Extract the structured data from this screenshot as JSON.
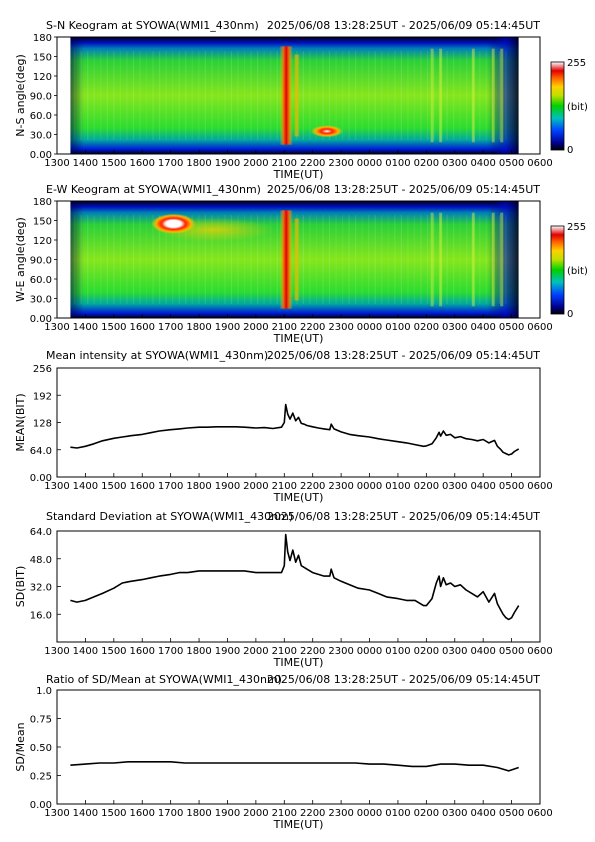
{
  "chart_data": [
    {
      "type": "heatmap",
      "title_left": "S-N Keogram at SYOWA(WMI1_430nm)",
      "title_right": "2025/06/08 13:28:25UT - 2025/06/09 05:14:45UT",
      "ylabel": "N-S angle(deg)",
      "xlabel": "TIME(UT)",
      "xticks": [
        "1300",
        "1400",
        "1500",
        "1600",
        "1700",
        "1800",
        "1900",
        "2000",
        "2100",
        "2200",
        "2300",
        "0000",
        "0100",
        "0200",
        "0300",
        "0400",
        "0500",
        "0600"
      ],
      "yticks": [
        "0.00",
        "30.0",
        "60.0",
        "90.0",
        "120",
        "150",
        "180"
      ],
      "ylim": [
        0,
        180
      ],
      "colorbar": {
        "min_label": "0",
        "max_label": "255",
        "unit_label": "(bit)"
      },
      "features": [
        {
          "time_hours": 21.05,
          "angle": 90,
          "intensity": 240,
          "kind": "vertical-band"
        },
        {
          "time_hours": 22.5,
          "angle": 35,
          "intensity": 255,
          "kind": "spot"
        }
      ]
    },
    {
      "type": "heatmap",
      "title_left": "E-W Keogram at SYOWA(WMI1_430nm)",
      "title_right": "2025/06/08 13:28:25UT - 2025/06/09 05:14:45UT",
      "ylabel": "W-E angle(deg)",
      "xlabel": "TIME(UT)",
      "xticks": [
        "1300",
        "1400",
        "1500",
        "1600",
        "1700",
        "1800",
        "1900",
        "2000",
        "2100",
        "2200",
        "2300",
        "0000",
        "0100",
        "0200",
        "0300",
        "0400",
        "0500",
        "0600"
      ],
      "yticks": [
        "0.00",
        "30.0",
        "60.0",
        "90.0",
        "120",
        "150",
        "180"
      ],
      "ylim": [
        0,
        180
      ],
      "colorbar": {
        "min_label": "0",
        "max_label": "255",
        "unit_label": "(bit)"
      },
      "features": [
        {
          "time_hours": 17.1,
          "angle": 145,
          "intensity": 255,
          "kind": "spot"
        },
        {
          "time_hours": 21.05,
          "angle": 90,
          "intensity": 240,
          "kind": "vertical-band"
        }
      ]
    },
    {
      "type": "line",
      "title_left": "Mean intensity at SYOWA(WMI1_430nm)",
      "title_right": "2025/06/08 13:28:25UT - 2025/06/09 05:14:45UT",
      "ylabel": "MEAN(BIT)",
      "xlabel": "TIME(UT)",
      "xticks": [
        "1300",
        "1400",
        "1500",
        "1600",
        "1700",
        "1800",
        "1900",
        "2000",
        "2100",
        "2200",
        "2300",
        "0000",
        "0100",
        "0200",
        "0300",
        "0400",
        "0500",
        "0600"
      ],
      "yticks": [
        "0.00",
        "64.0",
        "128",
        "192",
        "256"
      ],
      "ylim": [
        0,
        256
      ],
      "x_hours": [
        13.47,
        13.7,
        14.0,
        14.3,
        14.6,
        15.0,
        15.3,
        15.6,
        16.0,
        16.3,
        16.6,
        17.0,
        17.3,
        17.6,
        18.0,
        18.3,
        18.6,
        19.0,
        19.3,
        19.6,
        20.0,
        20.3,
        20.6,
        20.9,
        21.0,
        21.05,
        21.12,
        21.2,
        21.3,
        21.4,
        21.5,
        21.6,
        21.7,
        21.8,
        22.0,
        22.2,
        22.4,
        22.6,
        22.65,
        22.75,
        23.0,
        23.3,
        23.6,
        24.0,
        24.3,
        24.6,
        25.0,
        25.3,
        25.6,
        25.9,
        26.0,
        26.2,
        26.35,
        26.45,
        26.5,
        26.6,
        26.7,
        26.85,
        27.0,
        27.2,
        27.4,
        27.6,
        27.8,
        28.0,
        28.2,
        28.4,
        28.5,
        28.6,
        28.7,
        28.8,
        28.9,
        29.0,
        29.1,
        29.25
      ],
      "values": [
        70,
        68,
        72,
        78,
        85,
        91,
        94,
        97,
        100,
        104,
        108,
        111,
        113,
        115,
        117,
        117,
        118,
        118,
        118,
        117,
        115,
        116,
        114,
        117,
        128,
        170,
        148,
        136,
        150,
        132,
        140,
        126,
        124,
        121,
        118,
        115,
        113,
        111,
        124,
        113,
        106,
        100,
        97,
        94,
        90,
        87,
        83,
        80,
        76,
        72,
        73,
        78,
        92,
        105,
        96,
        108,
        98,
        100,
        92,
        95,
        90,
        88,
        85,
        88,
        80,
        86,
        72,
        66,
        58,
        55,
        52,
        54,
        60,
        66
      ]
    },
    {
      "type": "line",
      "title_left": "Standard Deviation at SYOWA(WMI1_430nm)",
      "title_right": "2025/06/08 13:28:25UT - 2025/06/09 05:14:45UT",
      "ylabel": "SD(BIT)",
      "xlabel": "TIME(UT)",
      "xticks": [
        "1300",
        "1400",
        "1500",
        "1600",
        "1700",
        "1800",
        "1900",
        "2000",
        "2100",
        "2200",
        "2300",
        "0000",
        "0100",
        "0200",
        "0300",
        "0400",
        "0500",
        "0600"
      ],
      "yticks": [
        "16.0",
        "32.0",
        "48.0",
        "64.0"
      ],
      "ylim": [
        0,
        64
      ],
      "x_hours": [
        13.47,
        13.7,
        14.0,
        14.3,
        14.6,
        15.0,
        15.3,
        15.6,
        16.0,
        16.3,
        16.6,
        17.0,
        17.3,
        17.6,
        18.0,
        18.3,
        18.6,
        19.0,
        19.3,
        19.6,
        20.0,
        20.3,
        20.6,
        20.9,
        21.0,
        21.05,
        21.12,
        21.2,
        21.3,
        21.4,
        21.5,
        21.6,
        21.7,
        21.8,
        22.0,
        22.2,
        22.4,
        22.6,
        22.65,
        22.75,
        23.0,
        23.3,
        23.6,
        24.0,
        24.3,
        24.6,
        25.0,
        25.3,
        25.6,
        25.9,
        26.0,
        26.2,
        26.35,
        26.45,
        26.5,
        26.6,
        26.7,
        26.85,
        27.0,
        27.2,
        27.4,
        27.6,
        27.8,
        28.0,
        28.2,
        28.4,
        28.5,
        28.6,
        28.7,
        28.8,
        28.9,
        29.0,
        29.1,
        29.25
      ],
      "values": [
        24,
        23,
        24,
        26,
        28,
        31,
        34,
        35,
        36,
        37,
        38,
        39,
        40,
        40,
        41,
        41,
        41,
        41,
        41,
        41,
        40,
        40,
        40,
        40,
        44,
        62,
        52,
        47,
        53,
        46,
        50,
        44,
        43,
        42,
        40,
        39,
        38,
        38,
        42,
        37,
        35,
        33,
        31,
        30,
        28,
        26,
        25,
        24,
        24,
        21,
        21,
        25,
        34,
        38,
        32,
        37,
        33,
        34,
        32,
        33,
        30,
        28,
        26,
        29,
        23,
        28,
        22,
        19,
        16,
        14,
        13,
        14,
        17,
        21
      ]
    },
    {
      "type": "line",
      "title_left": "Ratio of SD/Mean at SYOWA(WMI1_430nm)",
      "title_right": "2025/06/08 13:28:25UT - 2025/06/09 05:14:45UT",
      "ylabel": "SD/Mean",
      "xlabel": "TIME(UT)",
      "xticks": [
        "1300",
        "1400",
        "1500",
        "1600",
        "1700",
        "1800",
        "1900",
        "2000",
        "2100",
        "2200",
        "2300",
        "0000",
        "0100",
        "0200",
        "0300",
        "0400",
        "0500",
        "0600"
      ],
      "yticks": [
        "0.00",
        "0.25",
        "0.50",
        "0.75",
        "1.0"
      ],
      "ylim": [
        0,
        1
      ],
      "x_hours": [
        13.47,
        14.0,
        14.5,
        15.0,
        15.5,
        16.0,
        16.5,
        17.0,
        17.5,
        18.0,
        18.5,
        19.0,
        19.5,
        20.0,
        20.5,
        21.0,
        21.5,
        22.0,
        22.5,
        23.0,
        23.5,
        24.0,
        24.5,
        25.0,
        25.5,
        26.0,
        26.5,
        27.0,
        27.5,
        28.0,
        28.5,
        28.9,
        29.25
      ],
      "values": [
        0.34,
        0.35,
        0.36,
        0.36,
        0.37,
        0.37,
        0.37,
        0.37,
        0.36,
        0.36,
        0.36,
        0.36,
        0.36,
        0.36,
        0.36,
        0.36,
        0.36,
        0.36,
        0.36,
        0.36,
        0.36,
        0.35,
        0.35,
        0.34,
        0.33,
        0.33,
        0.35,
        0.35,
        0.34,
        0.34,
        0.32,
        0.29,
        0.32
      ]
    }
  ]
}
